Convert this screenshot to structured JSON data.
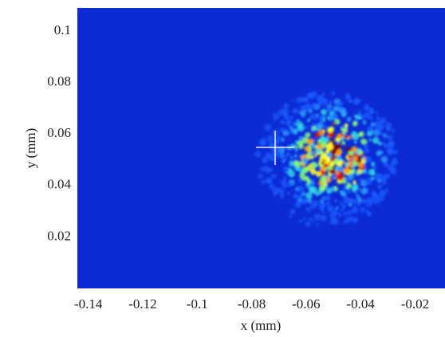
{
  "chart_data": {
    "type": "heatmap",
    "xlabel": "x  (mm)",
    "ylabel": "y  (mm)",
    "xlim": [
      -0.144,
      -0.009
    ],
    "ylim": [
      0,
      0.109
    ],
    "xticks": [
      -0.14,
      -0.12,
      -0.1,
      -0.08,
      -0.06,
      -0.04,
      -0.02
    ],
    "yticks": [
      0.02,
      0.04,
      0.06,
      0.08,
      0.1
    ],
    "color": "#0c2bd6"
  }
}
